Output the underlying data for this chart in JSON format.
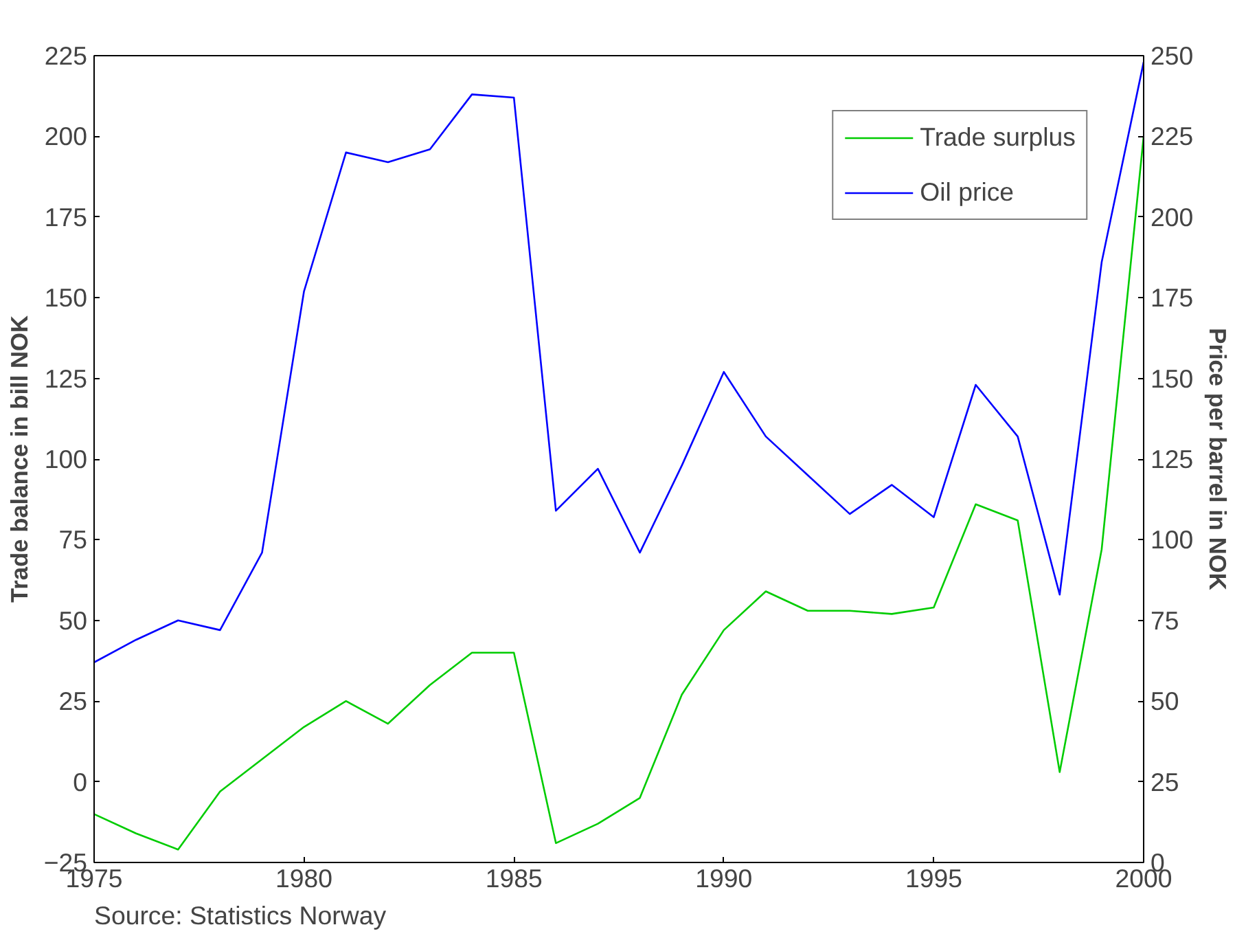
{
  "chart_data": {
    "type": "line",
    "xlabel": null,
    "ylabel": "Trade balance in bill NOK",
    "y2label": "Price per barrel in NOK",
    "x": [
      1975,
      1976,
      1977,
      1978,
      1979,
      1980,
      1981,
      1982,
      1983,
      1984,
      1985,
      1986,
      1987,
      1988,
      1989,
      1990,
      1991,
      1992,
      1993,
      1994,
      1995,
      1996,
      1997,
      1998,
      1999,
      2000
    ],
    "series": [
      {
        "name": "Trade surplus",
        "color": "#00cc00",
        "values": [
          -10,
          -16,
          -21,
          -3,
          7,
          17,
          25,
          18,
          30,
          40,
          40,
          -19,
          -13,
          -5,
          27,
          47,
          59,
          53,
          53,
          52,
          54,
          86,
          81,
          3,
          72,
          200
        ]
      },
      {
        "name": "Oil price",
        "color": "#0000ff",
        "axis": "y2",
        "values": [
          62,
          69,
          75,
          72,
          96,
          177,
          220,
          217,
          221,
          238,
          237,
          109,
          122,
          96,
          123,
          152,
          132,
          120,
          108,
          117,
          107,
          148,
          132,
          83,
          186,
          248
        ]
      }
    ],
    "xlim": [
      1975,
      2000
    ],
    "xticks": [
      1975,
      1980,
      1985,
      1990,
      1995,
      2000
    ],
    "ylim": [
      -25,
      225
    ],
    "yticks": [
      -25,
      0,
      25,
      50,
      75,
      100,
      125,
      150,
      175,
      200,
      225
    ],
    "y2lim": [
      0,
      250
    ],
    "y2ticks": [
      0,
      25,
      50,
      75,
      100,
      125,
      150,
      175,
      200,
      225,
      250
    ],
    "grid": false,
    "legend": "top right",
    "marker": "none",
    "line_style": "solid",
    "annotations": [
      "Source: Statistics Norway"
    ]
  }
}
